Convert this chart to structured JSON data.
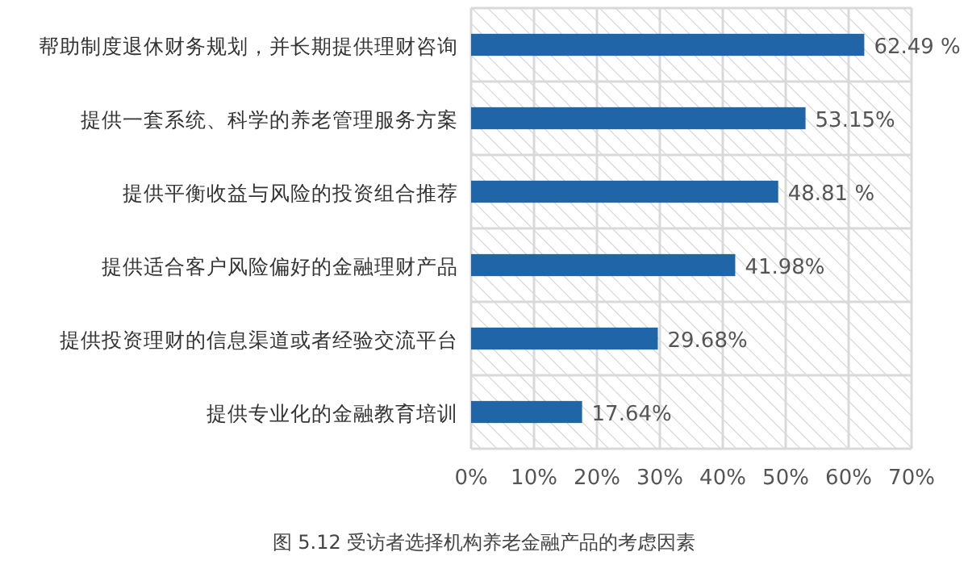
{
  "chart_data": {
    "type": "bar",
    "orientation": "horizontal",
    "categories": [
      "帮助制度退休财务规划，并长期提供理财咨询",
      "提供一套系统、科学的养老管理服务方案",
      "提供平衡收益与风险的投资组合推荐",
      "提供适合客户风险偏好的金融理财产品",
      "提供投资理财的信息渠道或者经验交流平台",
      "提供专业化的金融教育培训"
    ],
    "values": [
      62.49,
      53.15,
      48.81,
      41.98,
      29.68,
      17.64
    ],
    "value_labels": [
      "62.49 %",
      "53.15%",
      "48.81 %",
      "41.98%",
      "29.68%",
      "17.64%"
    ],
    "color": "#1f65a8",
    "xlim": [
      0,
      70
    ],
    "xticks": [
      {
        "value": 0,
        "label": "0%"
      },
      {
        "value": 10,
        "label": "10%"
      },
      {
        "value": 20,
        "label": "20%"
      },
      {
        "value": 30,
        "label": "30%"
      },
      {
        "value": 40,
        "label": "40%"
      },
      {
        "value": 50,
        "label": "50%"
      },
      {
        "value": 60,
        "label": "60%"
      },
      {
        "value": 70,
        "label": "70%"
      }
    ],
    "grid": true,
    "annotations": [
      "图 5.12 受访者选择机构养老金融产品的考虑因素"
    ]
  }
}
